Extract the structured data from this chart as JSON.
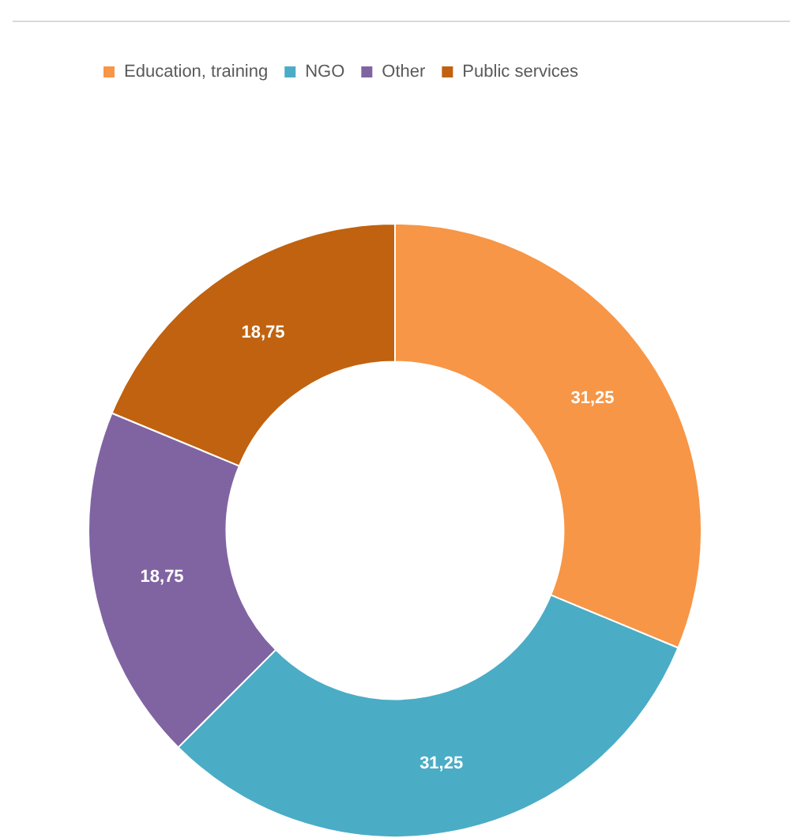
{
  "chart_data": {
    "type": "donut",
    "categories": [
      "Education, training",
      "NGO",
      "Other",
      "Public services"
    ],
    "values": [
      31.25,
      31.25,
      18.75,
      18.75
    ],
    "colors": [
      "#f79646",
      "#4bacc6",
      "#8064a2",
      "#c0620f"
    ],
    "value_labels": [
      "31,25",
      "31,25",
      "18,75",
      "18,75"
    ],
    "legend": "top"
  }
}
